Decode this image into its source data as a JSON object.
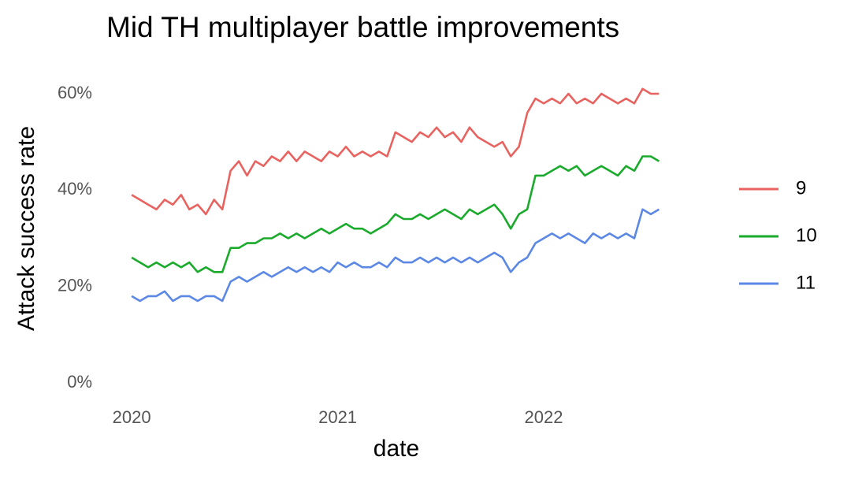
{
  "chart_data": {
    "type": "line",
    "title": "Mid TH multiplayer battle improvements",
    "x_label": "date",
    "y_label": "Attack success rate",
    "x": [
      2020.0,
      2020.04,
      2020.08,
      2020.12,
      2020.16,
      2020.2,
      2020.24,
      2020.28,
      2020.32,
      2020.36,
      2020.4,
      2020.44,
      2020.48,
      2020.52,
      2020.56,
      2020.6,
      2020.64,
      2020.68,
      2020.72,
      2020.76,
      2020.8,
      2020.84,
      2020.88,
      2020.92,
      2020.96,
      2021.0,
      2021.04,
      2021.08,
      2021.12,
      2021.16,
      2021.2,
      2021.24,
      2021.28,
      2021.32,
      2021.36,
      2021.4,
      2021.44,
      2021.48,
      2021.52,
      2021.56,
      2021.6,
      2021.64,
      2021.68,
      2021.72,
      2021.76,
      2021.8,
      2021.84,
      2021.88,
      2021.92,
      2021.96,
      2022.0,
      2022.04,
      2022.08,
      2022.12,
      2022.16,
      2022.2,
      2022.24,
      2022.28,
      2022.32,
      2022.36,
      2022.4,
      2022.44,
      2022.48,
      2022.52,
      2022.56
    ],
    "series": [
      {
        "name": "9",
        "color": "#e8635f",
        "values": [
          39,
          38,
          37,
          36,
          38,
          37,
          39,
          36,
          37,
          35,
          38,
          36,
          44,
          46,
          43,
          46,
          45,
          47,
          46,
          48,
          46,
          48,
          47,
          46,
          48,
          47,
          49,
          47,
          48,
          47,
          48,
          47,
          52,
          51,
          50,
          52,
          51,
          53,
          51,
          52,
          50,
          53,
          51,
          50,
          49,
          50,
          47,
          49,
          56,
          59,
          58,
          59,
          58,
          60,
          58,
          59,
          58,
          60,
          59,
          58,
          59,
          58,
          61,
          60,
          60
        ]
      },
      {
        "name": "10",
        "color": "#1aaa2c",
        "values": [
          26,
          25,
          24,
          25,
          24,
          25,
          24,
          25,
          23,
          24,
          23,
          23,
          28,
          28,
          29,
          29,
          30,
          30,
          31,
          30,
          31,
          30,
          31,
          32,
          31,
          32,
          33,
          32,
          32,
          31,
          32,
          33,
          35,
          34,
          34,
          35,
          34,
          35,
          36,
          35,
          34,
          36,
          35,
          36,
          37,
          35,
          32,
          35,
          36,
          43,
          43,
          44,
          45,
          44,
          45,
          43,
          44,
          45,
          44,
          43,
          45,
          44,
          47,
          47,
          46
        ]
      },
      {
        "name": "11",
        "color": "#5b87e5",
        "values": [
          18,
          17,
          18,
          18,
          19,
          17,
          18,
          18,
          17,
          18,
          18,
          17,
          21,
          22,
          21,
          22,
          23,
          22,
          23,
          24,
          23,
          24,
          23,
          24,
          23,
          25,
          24,
          25,
          24,
          24,
          25,
          24,
          26,
          25,
          25,
          26,
          25,
          26,
          25,
          26,
          25,
          26,
          25,
          26,
          27,
          26,
          23,
          25,
          26,
          29,
          30,
          31,
          30,
          31,
          30,
          29,
          31,
          30,
          31,
          30,
          31,
          30,
          36,
          35,
          36
        ]
      }
    ],
    "xlim": [
      2019.9,
      2022.7
    ],
    "xticks": [
      2020,
      2021,
      2022
    ],
    "ylim": [
      0,
      63
    ],
    "yticks": [
      {
        "value": 0,
        "label": "0%"
      },
      {
        "value": 20,
        "label": "20%"
      },
      {
        "value": 40,
        "label": "40%"
      },
      {
        "value": 60,
        "label": "60%"
      }
    ],
    "grid": false,
    "legend": "right"
  }
}
